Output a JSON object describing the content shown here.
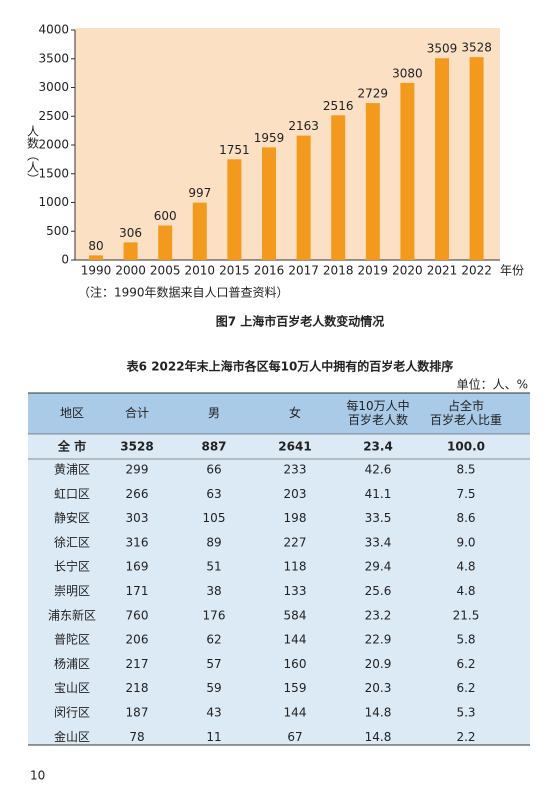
{
  "chart_data": {
    "type": "bar",
    "y_label": "人数（人）",
    "x_label": "年份",
    "categories": [
      "1990",
      "2000",
      "2005",
      "2010",
      "2015",
      "2016",
      "2017",
      "2018",
      "2019",
      "2020",
      "2021",
      "2022"
    ],
    "values": [
      80,
      306,
      600,
      997,
      1751,
      1959,
      2163,
      2516,
      2729,
      3080,
      3509,
      3528
    ],
    "color": "#f39a1e",
    "background": "#fbe0c4",
    "ylim": [
      0,
      4000
    ],
    "yticks": [
      0,
      500,
      1000,
      1500,
      2000,
      2500,
      3000,
      3500,
      4000
    ],
    "grid": false
  },
  "note": "（注：1990年数据来自人口普查资料）",
  "figure_caption": "图7  上海市百岁老人数变动情况",
  "table": {
    "title": "表6  2022年末上海市各区每10万人中拥有的百岁老人数排序",
    "unit": "单位：人、%",
    "header": [
      [
        "地区"
      ],
      [
        "合计"
      ],
      [
        "男"
      ],
      [
        "女"
      ],
      [
        "每10万人中",
        "百岁老人数"
      ],
      [
        "占全市",
        "百岁老人比重"
      ]
    ],
    "rows": [
      [
        "全  市",
        "3528",
        "887",
        "2641",
        "23.4",
        "100.0"
      ],
      [
        "黄浦区",
        "299",
        "66",
        "233",
        "42.6",
        "8.5"
      ],
      [
        "虹口区",
        "266",
        "63",
        "203",
        "41.1",
        "7.5"
      ],
      [
        "静安区",
        "303",
        "105",
        "198",
        "33.5",
        "8.6"
      ],
      [
        "徐汇区",
        "316",
        "89",
        "227",
        "33.4",
        "9.0"
      ],
      [
        "长宁区",
        "169",
        "51",
        "118",
        "29.4",
        "4.8"
      ],
      [
        "崇明区",
        "171",
        "38",
        "133",
        "25.6",
        "4.8"
      ],
      [
        "浦东新区",
        "760",
        "176",
        "584",
        "23.2",
        "21.5"
      ],
      [
        "普陀区",
        "206",
        "62",
        "144",
        "22.9",
        "5.8"
      ],
      [
        "杨浦区",
        "217",
        "57",
        "160",
        "20.9",
        "6.2"
      ],
      [
        "宝山区",
        "218",
        "59",
        "159",
        "20.3",
        "6.2"
      ],
      [
        "闵行区",
        "187",
        "43",
        "144",
        "14.8",
        "5.3"
      ],
      [
        "金山区",
        "78",
        "11",
        "67",
        "14.8",
        "2.2"
      ]
    ]
  },
  "page_number": "10"
}
